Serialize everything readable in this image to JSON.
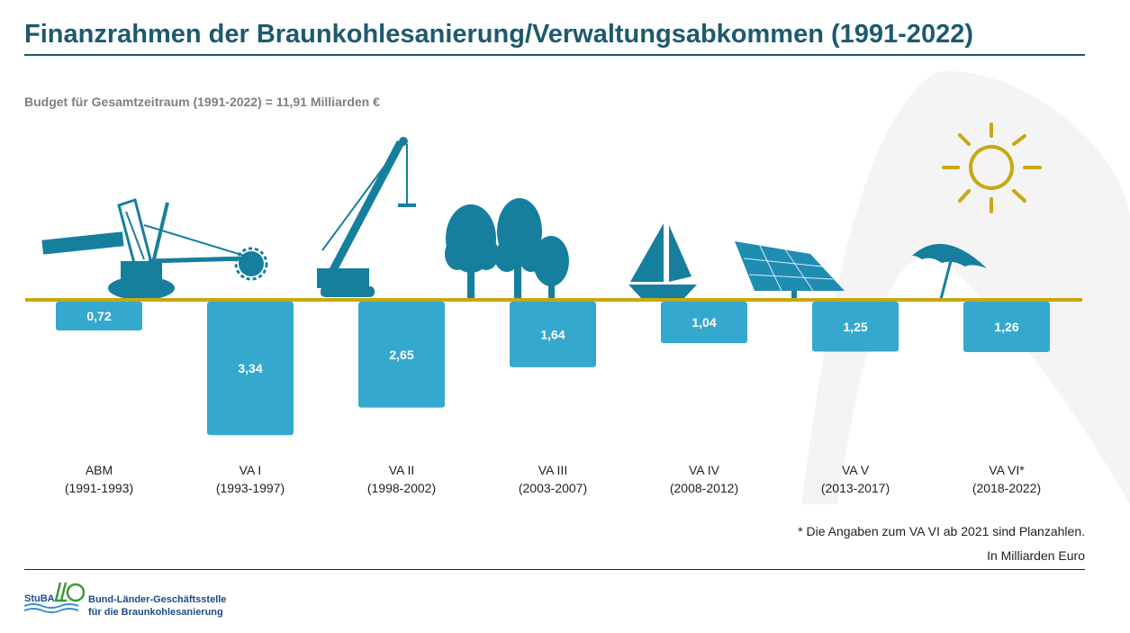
{
  "title": "Finanzrahmen der Braunkohlesanierung/Verwaltungsabkommen (1991-2022)",
  "subtitle": "Budget für Gesamtzeitraum (1991-2022) = 11,91 Milliarden €",
  "footnote": "* Die Angaben zum VA VI ab 2021 sind Planzahlen.",
  "unit_note": "In Milliarden Euro",
  "logo": {
    "abbr": "StuBA",
    "line1": "Bund-Länder-Geschäftsstelle",
    "line2": "für die Braunkohlesanierung"
  },
  "colors": {
    "title": "#1d5a6e",
    "bar": "#35a8ce",
    "baseline": "#c8a812",
    "icon": "#177f9e",
    "sun": "#c8a812"
  },
  "icons": [
    "excavator-icon",
    "crane-icon",
    "trees-icon",
    "sailboat-icon",
    "solar-panel-icon",
    "sun-umbrella-icon"
  ],
  "chart_data": {
    "type": "bar",
    "orientation": "downward from baseline",
    "categories": [
      {
        "name": "ABM",
        "period": "(1991-1993)"
      },
      {
        "name": "VA I",
        "period": "(1993-1997)"
      },
      {
        "name": "VA II",
        "period": "(1998-2002)"
      },
      {
        "name": "VA III",
        "period": "(2003-2007)"
      },
      {
        "name": "VA IV",
        "period": "(2008-2012)"
      },
      {
        "name": "VA V",
        "period": "(2013-2017)"
      },
      {
        "name": "VA VI*",
        "period": "(2018-2022)"
      }
    ],
    "values": [
      0.72,
      3.34,
      2.65,
      1.64,
      1.04,
      1.25,
      1.26
    ],
    "value_labels": [
      "0,72",
      "3,34",
      "2,65",
      "1,64",
      "1,04",
      "1,25",
      "1,26"
    ],
    "grid": false,
    "legend": "none"
  }
}
